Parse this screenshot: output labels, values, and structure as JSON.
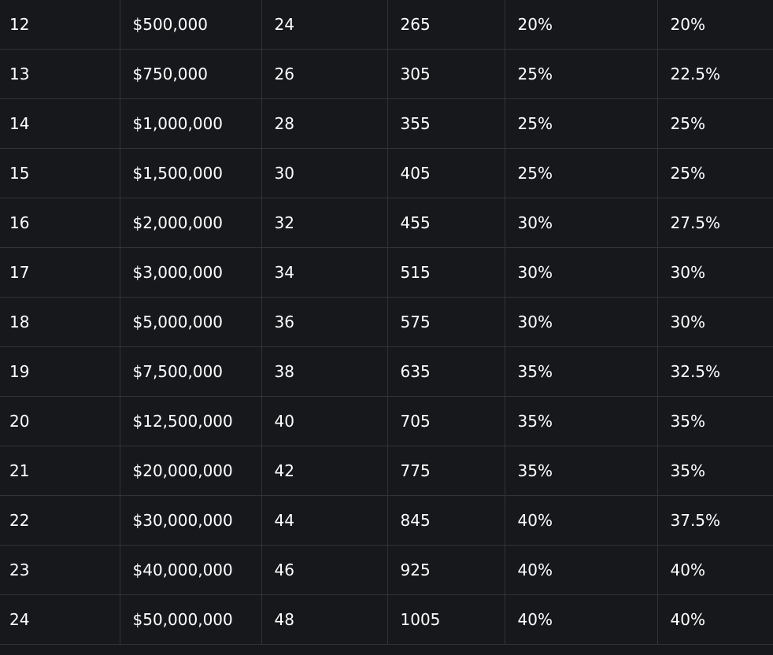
{
  "table": {
    "rows": [
      [
        "12",
        "$500,000",
        "24",
        "265",
        "20%",
        "20%"
      ],
      [
        "13",
        "$750,000",
        "26",
        "305",
        "25%",
        "22.5%"
      ],
      [
        "14",
        "$1,000,000",
        "28",
        "355",
        "25%",
        "25%"
      ],
      [
        "15",
        "$1,500,000",
        "30",
        "405",
        "25%",
        "25%"
      ],
      [
        "16",
        "$2,000,000",
        "32",
        "455",
        "30%",
        "27.5%"
      ],
      [
        "17",
        "$3,000,000",
        "34",
        "515",
        "30%",
        "30%"
      ],
      [
        "18",
        "$5,000,000",
        "36",
        "575",
        "30%",
        "30%"
      ],
      [
        "19",
        "$7,500,000",
        "38",
        "635",
        "35%",
        "32.5%"
      ],
      [
        "20",
        "$12,500,000",
        "40",
        "705",
        "35%",
        "35%"
      ],
      [
        "21",
        "$20,000,000",
        "42",
        "775",
        "35%",
        "35%"
      ],
      [
        "22",
        "$30,000,000",
        "44",
        "845",
        "40%",
        "37.5%"
      ],
      [
        "23",
        "$40,000,000",
        "46",
        "925",
        "40%",
        "40%"
      ],
      [
        "24",
        "$50,000,000",
        "48",
        "1005",
        "40%",
        "40%"
      ]
    ]
  },
  "colors": {
    "background": "#16181c",
    "grid_line": "#30343b",
    "text": "#ffffff"
  }
}
